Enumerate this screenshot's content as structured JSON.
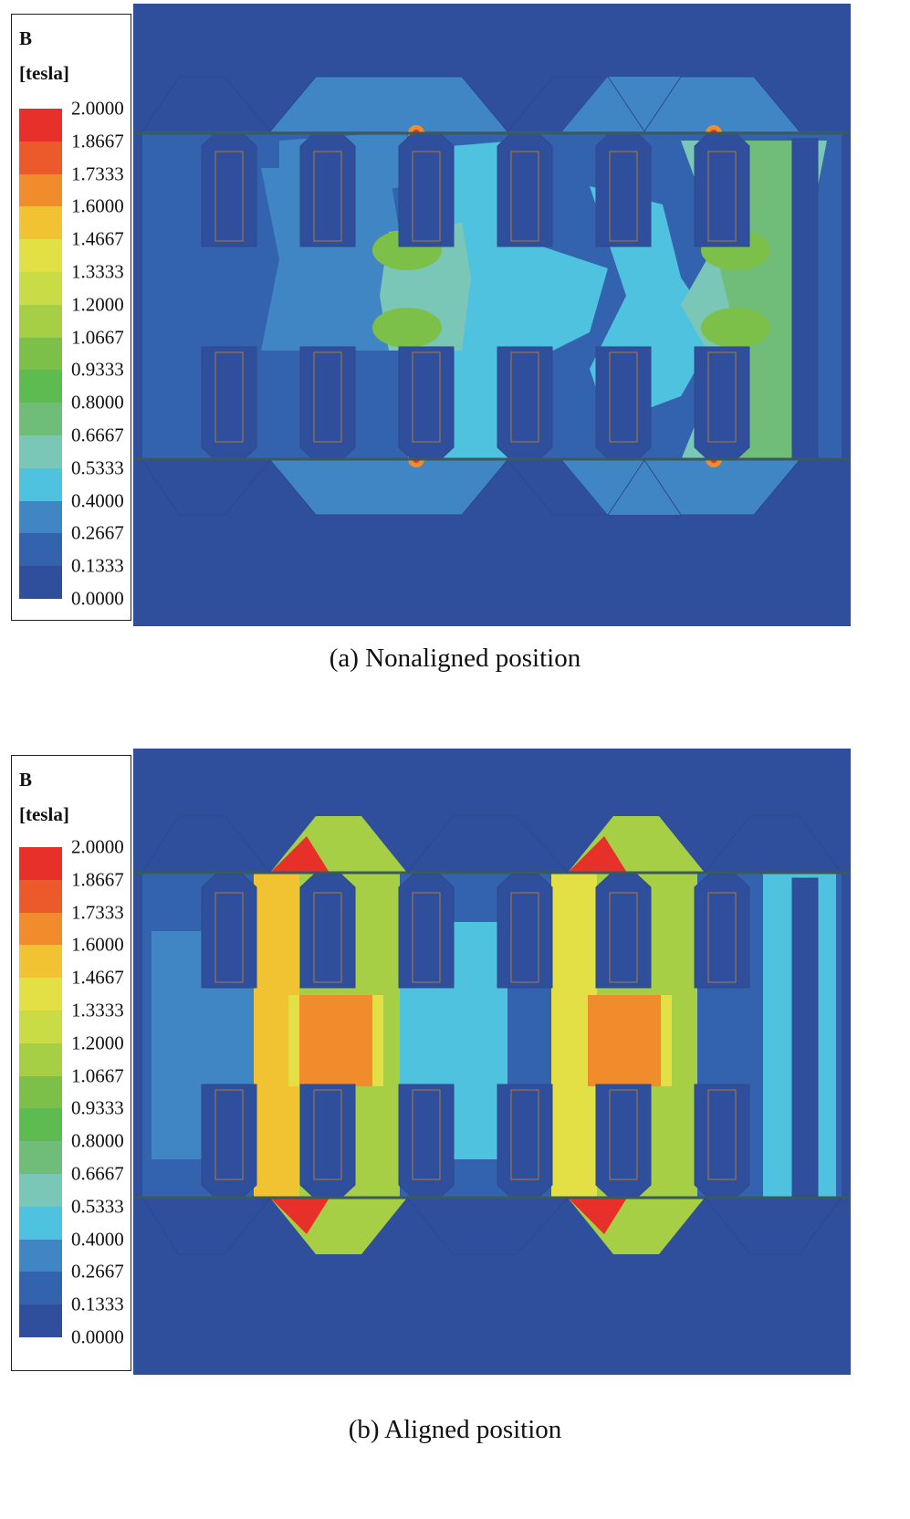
{
  "legend": {
    "quantity": "B",
    "unit": "[tesla]",
    "ticks": [
      "2.0000",
      "1.8667",
      "1.7333",
      "1.6000",
      "1.4667",
      "1.3333",
      "1.2000",
      "1.0667",
      "0.9333",
      "0.8000",
      "0.6667",
      "0.5333",
      "0.4000",
      "0.2667",
      "0.1333",
      "0.0000"
    ],
    "colors": [
      "#e8302a",
      "#ec5a2b",
      "#f18c2c",
      "#f1c232",
      "#e3e046",
      "#c9dc45",
      "#a6cf45",
      "#7cc04a",
      "#5dbb52",
      "#70bd7a",
      "#7ac7b8",
      "#4fc2e0",
      "#4186c4",
      "#3362ae",
      "#2f4e9c"
    ]
  },
  "panels": [
    {
      "caption": "(a) Nonaligned position"
    },
    {
      "caption": "(b) Aligned position"
    }
  ]
}
